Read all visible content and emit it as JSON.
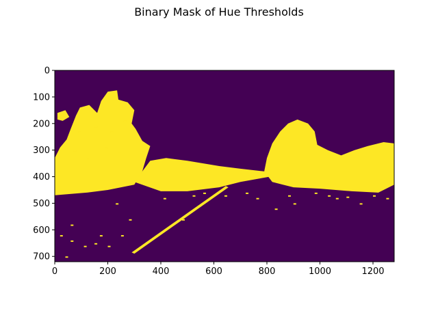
{
  "chart_data": {
    "type": "heatmap",
    "title": "Binary Mask of Hue Thresholds",
    "xlabel": "",
    "ylabel": "",
    "xlim": [
      0,
      1280
    ],
    "ylim": [
      720,
      0
    ],
    "x_ticks": [
      0,
      200,
      400,
      600,
      800,
      1000,
      1200
    ],
    "y_ticks": [
      0,
      100,
      200,
      300,
      400,
      500,
      600,
      700
    ],
    "colors": {
      "background": "#440154",
      "mask": "#fde725"
    },
    "regions": [
      {
        "name": "left-foliage",
        "polygon": [
          [
            0,
            330
          ],
          [
            20,
            290
          ],
          [
            45,
            260
          ],
          [
            60,
            220
          ],
          [
            80,
            170
          ],
          [
            95,
            140
          ],
          [
            130,
            130
          ],
          [
            160,
            160
          ],
          [
            175,
            115
          ],
          [
            200,
            80
          ],
          [
            235,
            75
          ],
          [
            240,
            110
          ],
          [
            275,
            120
          ],
          [
            300,
            150
          ],
          [
            290,
            200
          ],
          [
            305,
            220
          ],
          [
            330,
            265
          ],
          [
            360,
            285
          ],
          [
            345,
            330
          ],
          [
            330,
            380
          ],
          [
            300,
            430
          ],
          [
            200,
            450
          ],
          [
            120,
            460
          ],
          [
            0,
            470
          ]
        ]
      },
      {
        "name": "middle-band",
        "polygon": [
          [
            300,
            420
          ],
          [
            360,
            340
          ],
          [
            420,
            330
          ],
          [
            500,
            340
          ],
          [
            560,
            350
          ],
          [
            620,
            360
          ],
          [
            700,
            370
          ],
          [
            790,
            380
          ],
          [
            810,
            400
          ],
          [
            700,
            420
          ],
          [
            620,
            440
          ],
          [
            500,
            455
          ],
          [
            400,
            455
          ]
        ]
      },
      {
        "name": "right-hill",
        "polygon": [
          [
            790,
            380
          ],
          [
            800,
            330
          ],
          [
            820,
            275
          ],
          [
            850,
            230
          ],
          [
            880,
            200
          ],
          [
            915,
            185
          ],
          [
            955,
            200
          ],
          [
            980,
            230
          ],
          [
            990,
            280
          ],
          [
            1030,
            300
          ],
          [
            1080,
            320
          ],
          [
            1130,
            300
          ],
          [
            1180,
            285
          ],
          [
            1240,
            270
          ],
          [
            1280,
            275
          ],
          [
            1280,
            430
          ],
          [
            1220,
            460
          ],
          [
            1120,
            455
          ],
          [
            1000,
            445
          ],
          [
            900,
            440
          ],
          [
            860,
            430
          ],
          [
            820,
            420
          ]
        ]
      },
      {
        "name": "lane-line",
        "polygon": [
          [
            290,
            685
          ],
          [
            300,
            690
          ],
          [
            655,
            440
          ],
          [
            645,
            435
          ]
        ]
      },
      {
        "name": "upper-left-specks",
        "polygon": [
          [
            10,
            160
          ],
          [
            40,
            150
          ],
          [
            55,
            175
          ],
          [
            30,
            190
          ],
          [
            10,
            185
          ]
        ]
      }
    ],
    "specks": [
      [
        90,
        230
      ],
      [
        150,
        210
      ],
      [
        210,
        230
      ],
      [
        260,
        190
      ],
      [
        190,
        290
      ],
      [
        240,
        310
      ],
      [
        120,
        330
      ],
      [
        70,
        300
      ],
      [
        330,
        300
      ],
      [
        480,
        560
      ],
      [
        230,
        500
      ],
      [
        520,
        470
      ],
      [
        560,
        460
      ],
      [
        980,
        460
      ],
      [
        1100,
        475
      ],
      [
        1150,
        500
      ],
      [
        1200,
        470
      ],
      [
        1250,
        480
      ],
      [
        880,
        470
      ],
      [
        900,
        500
      ],
      [
        1060,
        480
      ],
      [
        1180,
        450
      ],
      [
        1140,
        440
      ],
      [
        20,
        620
      ],
      [
        60,
        640
      ],
      [
        110,
        660
      ],
      [
        150,
        650
      ],
      [
        170,
        620
      ],
      [
        60,
        580
      ],
      [
        40,
        700
      ],
      [
        250,
        620
      ],
      [
        280,
        560
      ],
      [
        200,
        660
      ],
      [
        410,
        480
      ],
      [
        830,
        520
      ],
      [
        760,
        480
      ],
      [
        720,
        460
      ],
      [
        1030,
        470
      ],
      [
        640,
        470
      ]
    ]
  }
}
